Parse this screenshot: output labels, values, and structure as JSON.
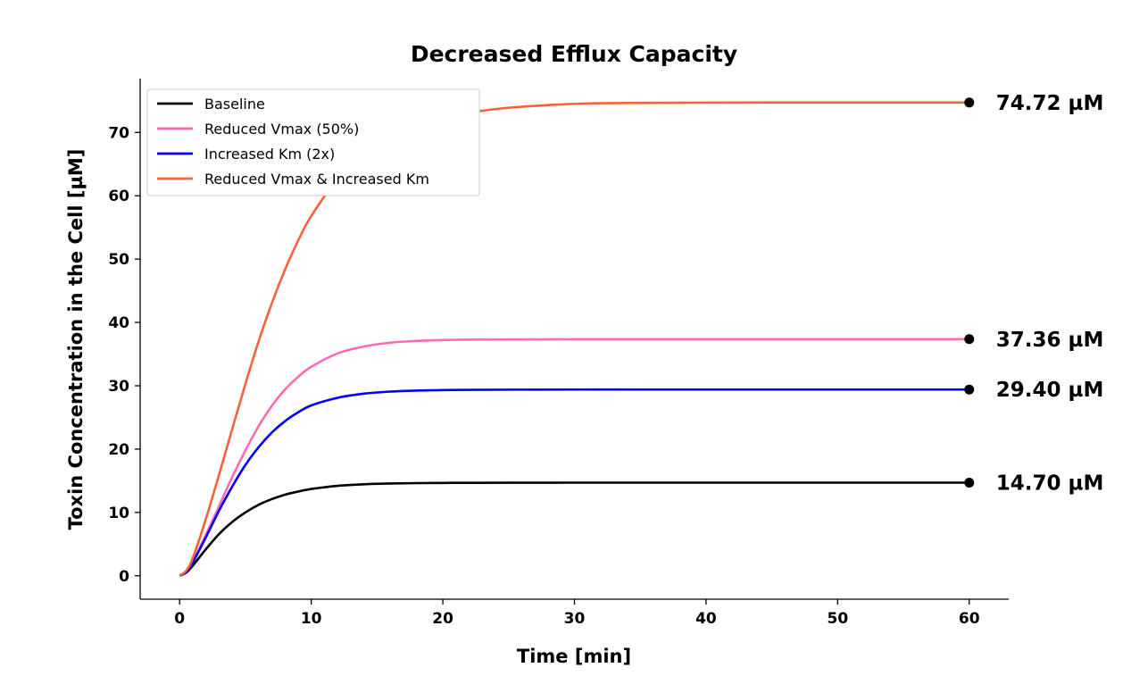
{
  "chart_data": {
    "type": "line",
    "title": "Decreased Efflux Capacity",
    "xlabel": "Time [min]",
    "ylabel": "Toxin Concentration in the Cell [µM]",
    "xlim": [
      -3,
      63
    ],
    "ylim": [
      -3.7,
      78.5
    ],
    "xticks": [
      0,
      10,
      20,
      30,
      40,
      50,
      60
    ],
    "yticks": [
      0,
      10,
      20,
      30,
      40,
      50,
      60,
      70
    ],
    "grid": false,
    "legend_position": "top-left",
    "x": [
      0,
      0.5,
      1,
      2,
      3,
      4,
      5,
      6,
      7,
      8,
      9,
      10,
      12,
      14,
      16,
      18,
      20,
      22,
      25,
      30,
      35,
      40,
      45,
      50,
      55,
      60
    ],
    "series": [
      {
        "name": "Baseline",
        "color": "#000000",
        "values": [
          0,
          0.5,
          1.6,
          4.2,
          6.6,
          8.5,
          10.0,
          11.2,
          12.1,
          12.8,
          13.3,
          13.7,
          14.2,
          14.45,
          14.57,
          14.63,
          14.66,
          14.68,
          14.69,
          14.7,
          14.7,
          14.7,
          14.7,
          14.7,
          14.7,
          14.7
        ],
        "end_label": "14.70 µM"
      },
      {
        "name": "Reduced Vmax (50%)",
        "color": "#ff69b4",
        "values": [
          0,
          0.7,
          2.2,
          6.5,
          11.0,
          15.6,
          19.8,
          23.6,
          26.8,
          29.4,
          31.4,
          33.0,
          35.1,
          36.2,
          36.8,
          37.08,
          37.22,
          37.29,
          37.33,
          37.35,
          37.36,
          37.36,
          37.36,
          37.36,
          37.36,
          37.36
        ],
        "end_label": "37.36 µM"
      },
      {
        "name": "Increased Km (2x)",
        "color": "#0000ff",
        "values": [
          0,
          0.6,
          2.1,
          6.1,
          10.3,
          14.1,
          17.5,
          20.3,
          22.6,
          24.4,
          25.8,
          26.9,
          28.1,
          28.75,
          29.08,
          29.24,
          29.32,
          29.36,
          29.38,
          29.4,
          29.4,
          29.4,
          29.4,
          29.4,
          29.4,
          29.4
        ],
        "end_label": "29.40 µM"
      },
      {
        "name": "Reduced Vmax & Increased Km",
        "color": "#f4623a",
        "values": [
          0,
          0.8,
          2.8,
          9.0,
          16.0,
          23.2,
          30.3,
          37.0,
          43.0,
          48.3,
          52.9,
          56.8,
          62.6,
          66.5,
          69.2,
          71.0,
          72.3,
          73.1,
          73.9,
          74.5,
          74.66,
          74.7,
          74.72,
          74.72,
          74.72,
          74.72
        ],
        "end_label": "74.72 µM"
      }
    ]
  }
}
